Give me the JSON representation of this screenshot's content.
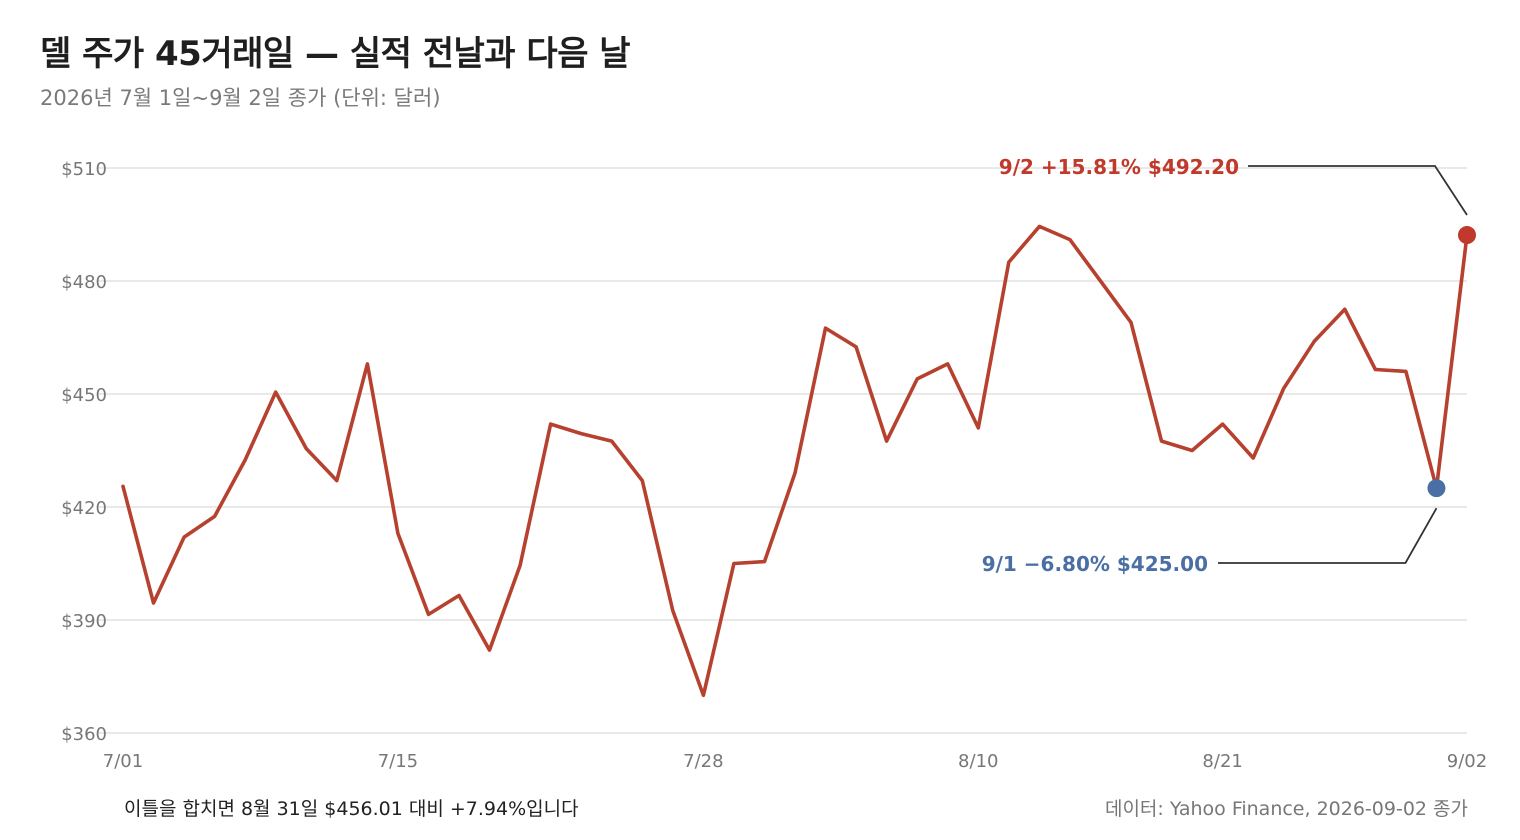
{
  "header": {
    "title": "델 주가 45거래일 — 실적 전날과 다음 날",
    "subtitle": "2026년 7월 1일~9월 2일 종가 (단위: 달러)"
  },
  "footer": {
    "note": "이틀을 합치면 8월 31일 $456.01 대비 +7.94%입니다",
    "source": "데이터: Yahoo Finance, 2026-09-02 종가"
  },
  "colors": {
    "line": "#b7412f",
    "highlight_up": "#c0392b",
    "highlight_down": "#4a6fa5",
    "grid": "#dcdcdc",
    "axis_text": "#777777"
  },
  "chart_data": {
    "type": "line",
    "xlabel": "",
    "ylabel": "",
    "ylim": [
      360,
      510
    ],
    "yticks": [
      360,
      390,
      420,
      450,
      480,
      510
    ],
    "ytick_labels": [
      "$360",
      "$390",
      "$420",
      "$450",
      "$480",
      "$510"
    ],
    "xtick_labels": [
      "7/01",
      "7/15",
      "7/28",
      "8/10",
      "8/21",
      "9/02"
    ],
    "xtick_index": [
      0,
      9,
      19,
      28,
      36,
      44
    ],
    "grid": true,
    "series": [
      {
        "values": [
          425.5,
          394.5,
          412.0,
          417.5,
          432.5,
          450.5,
          435.5,
          427.0,
          458.0,
          413.0,
          391.5,
          396.5,
          382.0,
          404.5,
          442.0,
          439.5,
          437.5,
          427.0,
          392.5,
          370.0,
          405.0,
          405.5,
          429.0,
          467.5,
          462.5,
          437.5,
          454.0,
          458.0,
          441.0,
          485.0,
          494.5,
          491.0,
          480.0,
          469.0,
          437.5,
          435.0,
          442.0,
          433.0,
          451.5,
          464.0,
          472.5,
          456.5,
          456.0,
          425.0,
          492.2
        ]
      }
    ],
    "annotations": [
      {
        "index": 44,
        "label": "9/2 +15.81%  $492.20",
        "kind": "up"
      },
      {
        "index": 43,
        "label": "9/1 −6.80%  $425.00",
        "kind": "down"
      }
    ]
  }
}
